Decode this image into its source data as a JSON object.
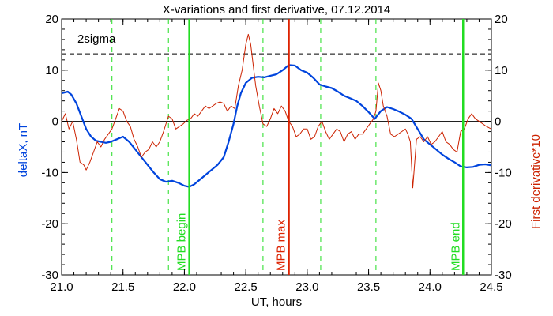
{
  "chart_data": {
    "type": "line",
    "title": "X-variations and first derivative, 07.12.2014",
    "xlabel": "UT, hours",
    "ylabel_left": "deltaX, nT",
    "ylabel_right": "First derivative*10",
    "xlim": [
      21.0,
      24.5
    ],
    "ylim": [
      -30,
      20
    ],
    "xticks": [
      "21.0",
      "21.5",
      "22.0",
      "22.5",
      "23.0",
      "23.5",
      "24.0",
      "24.5"
    ],
    "yticks_left": [
      "-30",
      "-20",
      "-10",
      "0",
      "10",
      "20"
    ],
    "yticks_right": [
      "-30",
      "-20",
      "-10",
      "0",
      "10",
      "20"
    ],
    "grid": false,
    "colors": {
      "deltaX": "#0044dd",
      "derivative": "#cc2200",
      "mpb": "#22dd22",
      "max": "#dd2200"
    },
    "threshold": {
      "label": "2sigma",
      "y": 13.2
    },
    "markers": [
      {
        "label": "MPB begin",
        "x": 22.04,
        "color": "#22dd22"
      },
      {
        "label": "MPB max",
        "x": 22.85,
        "color": "#dd2200"
      },
      {
        "label": "MPB end",
        "x": 24.27,
        "color": "#22dd22"
      }
    ],
    "dashed_lines_x": [
      21.41,
      21.87,
      22.64,
      23.11,
      23.56
    ],
    "series": [
      {
        "color": "#0044dd",
        "x": [
          21.0,
          21.05,
          21.08,
          21.12,
          21.16,
          21.2,
          21.24,
          21.28,
          21.32,
          21.36,
          21.4,
          21.45,
          21.5,
          21.55,
          21.6,
          21.65,
          21.7,
          21.75,
          21.8,
          21.85,
          21.9,
          21.95,
          22.0,
          22.04,
          22.08,
          22.12,
          22.17,
          22.22,
          22.27,
          22.32,
          22.36,
          22.4,
          22.43,
          22.46,
          22.5,
          22.55,
          22.6,
          22.65,
          22.7,
          22.75,
          22.8,
          22.85,
          22.9,
          22.95,
          23.0,
          23.05,
          23.1,
          23.15,
          23.2,
          23.25,
          23.3,
          23.35,
          23.4,
          23.45,
          23.5,
          23.55,
          23.6,
          23.65,
          23.7,
          23.75,
          23.8,
          23.85,
          23.9,
          23.95,
          24.0,
          24.05,
          24.1,
          24.15,
          24.2,
          24.25,
          24.3,
          24.35,
          24.4,
          24.45,
          24.5
        ],
        "y": [
          5.5,
          5.8,
          5.2,
          3.5,
          1.0,
          -1.5,
          -3.0,
          -3.8,
          -4.0,
          -4.2,
          -4.0,
          -3.5,
          -3.0,
          -4.0,
          -5.5,
          -7.0,
          -8.5,
          -10.0,
          -11.3,
          -11.8,
          -11.6,
          -12.0,
          -12.6,
          -12.8,
          -12.3,
          -11.5,
          -10.5,
          -9.5,
          -8.5,
          -7.0,
          -4.0,
          -0.5,
          3.0,
          5.5,
          7.5,
          8.5,
          8.7,
          8.6,
          8.9,
          9.2,
          10.0,
          11.0,
          10.9,
          10.0,
          9.5,
          8.5,
          7.2,
          6.8,
          6.5,
          5.8,
          5.0,
          4.5,
          4.0,
          3.0,
          1.8,
          0.5,
          2.0,
          2.8,
          2.4,
          1.9,
          1.3,
          0.5,
          -1.5,
          -3.5,
          -4.5,
          -5.5,
          -6.5,
          -7.3,
          -8.0,
          -8.8,
          -9.0,
          -8.9,
          -8.5,
          -8.4,
          -8.6
        ]
      },
      {
        "color": "#cc2200",
        "x": [
          21.0,
          21.03,
          21.06,
          21.09,
          21.12,
          21.15,
          21.18,
          21.2,
          21.23,
          21.26,
          21.29,
          21.32,
          21.35,
          21.38,
          21.41,
          21.44,
          21.47,
          21.5,
          21.53,
          21.56,
          21.59,
          21.62,
          21.65,
          21.68,
          21.71,
          21.74,
          21.77,
          21.8,
          21.83,
          21.87,
          21.9,
          21.93,
          21.96,
          21.99,
          22.02,
          22.05,
          22.08,
          22.11,
          22.14,
          22.17,
          22.2,
          22.23,
          22.26,
          22.29,
          22.32,
          22.35,
          22.38,
          22.41,
          22.44,
          22.47,
          22.5,
          22.52,
          22.54,
          22.56,
          22.58,
          22.61,
          22.64,
          22.67,
          22.7,
          22.73,
          22.76,
          22.79,
          22.82,
          22.85,
          22.88,
          22.91,
          22.94,
          22.97,
          23.0,
          23.03,
          23.06,
          23.09,
          23.12,
          23.15,
          23.18,
          23.21,
          23.24,
          23.27,
          23.3,
          23.33,
          23.36,
          23.39,
          23.42,
          23.45,
          23.48,
          23.51,
          23.54,
          23.56,
          23.58,
          23.6,
          23.62,
          23.65,
          23.68,
          23.71,
          23.74,
          23.77,
          23.8,
          23.82,
          23.84,
          23.86,
          23.89,
          23.92,
          23.95,
          23.98,
          24.01,
          24.04,
          24.07,
          24.1,
          24.13,
          24.16,
          24.19,
          24.22,
          24.25,
          24.28,
          24.31,
          24.34,
          24.37,
          24.4,
          24.43,
          24.46,
          24.5
        ],
        "y": [
          0.0,
          1.5,
          -1.5,
          0.0,
          -3.5,
          -8.0,
          -8.5,
          -9.5,
          -8.0,
          -6.0,
          -4.0,
          -5.0,
          -3.5,
          -2.5,
          -1.5,
          0.5,
          2.5,
          2.0,
          0.0,
          -1.0,
          -3.5,
          -5.0,
          -7.0,
          -6.0,
          -5.5,
          -4.0,
          -5.0,
          -4.0,
          -2.0,
          1.0,
          0.5,
          -1.5,
          -1.0,
          -0.5,
          0.2,
          0.5,
          1.5,
          1.0,
          2.0,
          3.0,
          2.5,
          3.0,
          3.5,
          3.8,
          3.5,
          2.0,
          3.0,
          2.5,
          7.0,
          10.0,
          15.0,
          17.0,
          15.0,
          11.0,
          7.0,
          3.0,
          -0.5,
          -1.0,
          0.5,
          2.5,
          1.5,
          3.0,
          2.0,
          0.0,
          -1.0,
          -3.0,
          -2.5,
          -1.5,
          -1.5,
          -3.5,
          -3.0,
          -1.0,
          0.0,
          -2.0,
          -3.5,
          -2.5,
          -1.5,
          -2.0,
          -4.0,
          -2.5,
          -2.0,
          -3.5,
          -2.5,
          -2.5,
          -1.5,
          -0.5,
          0.5,
          2.0,
          7.5,
          6.0,
          3.0,
          1.0,
          -2.5,
          -3.0,
          -2.5,
          -2.0,
          -1.5,
          -2.5,
          -4.0,
          -13.0,
          -3.5,
          -3.0,
          -4.0,
          -3.0,
          -4.5,
          -4.0,
          -3.0,
          -2.0,
          -4.0,
          -4.5,
          -5.5,
          -6.0,
          -2.0,
          -1.5,
          0.5,
          1.5,
          0.5,
          0.0,
          -0.5,
          -1.0,
          -1.5
        ]
      }
    ]
  }
}
